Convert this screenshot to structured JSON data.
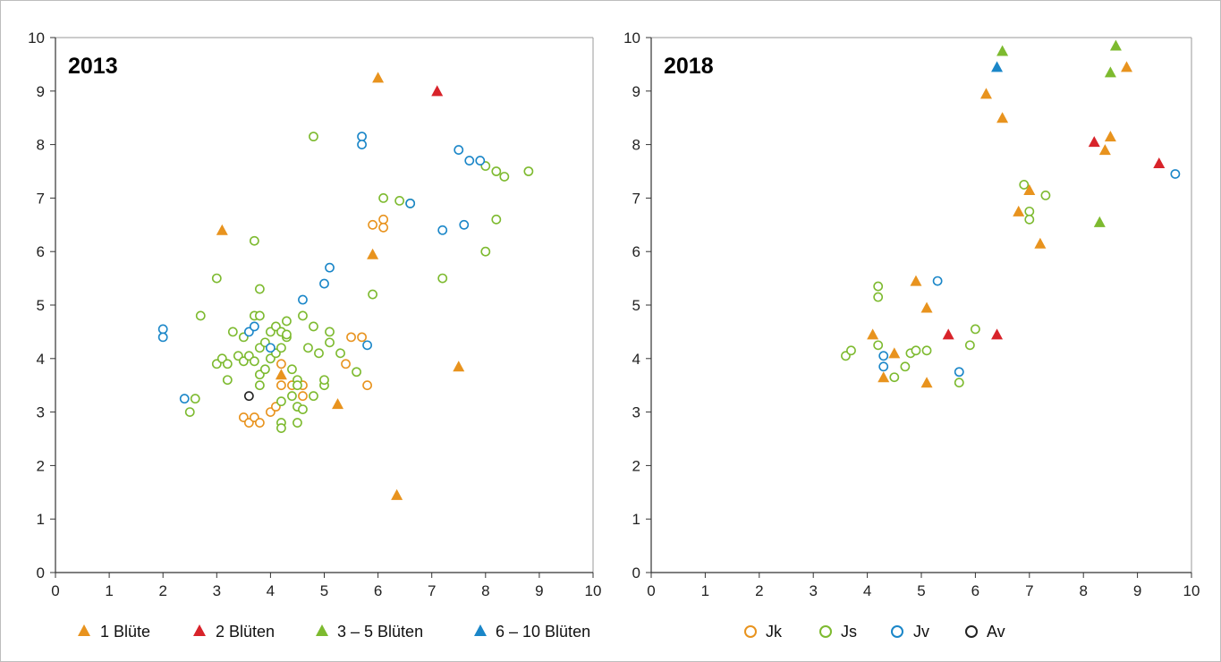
{
  "legends": {
    "flowers": [
      {
        "label": "1 Blüte",
        "color": "#E8931E"
      },
      {
        "label": "2 Blüten",
        "color": "#D8232A"
      },
      {
        "label": "3 – 5 Blüten",
        "color": "#7DBA2F"
      },
      {
        "label": "6 – 10 Blüten",
        "color": "#1A86C8"
      }
    ],
    "groups": [
      {
        "label": "Jk",
        "color": "#E8931E"
      },
      {
        "label": "Js",
        "color": "#7DBA2F"
      },
      {
        "label": "Jv",
        "color": "#1A86C8"
      },
      {
        "label": "Av",
        "color": "#222222"
      }
    ]
  },
  "chart_data": [
    {
      "type": "scatter",
      "title": "2013",
      "xlim": [
        0,
        10
      ],
      "ylim": [
        0,
        10
      ],
      "xticks": [
        "0",
        "1",
        "2",
        "3",
        "4",
        "5",
        "6",
        "7",
        "8",
        "9",
        "10"
      ],
      "yticks": [
        "0",
        "1",
        "2",
        "3",
        "4",
        "5",
        "6",
        "7",
        "8",
        "9",
        "10"
      ],
      "grid": false,
      "series": [
        {
          "name": "Jk",
          "marker": "circle-open",
          "color": "#E8931E",
          "points": [
            [
              3.5,
              2.9
            ],
            [
              3.6,
              2.8
            ],
            [
              3.7,
              2.9
            ],
            [
              3.8,
              2.8
            ],
            [
              4.0,
              3.0
            ],
            [
              4.1,
              3.1
            ],
            [
              4.2,
              3.5
            ],
            [
              4.2,
              3.9
            ],
            [
              4.4,
              3.5
            ],
            [
              4.6,
              3.3
            ],
            [
              4.6,
              3.5
            ],
            [
              5.4,
              3.9
            ],
            [
              5.5,
              4.4
            ],
            [
              5.7,
              4.4
            ],
            [
              5.8,
              3.5
            ],
            [
              5.9,
              6.5
            ],
            [
              6.1,
              6.6
            ],
            [
              6.1,
              6.45
            ]
          ]
        },
        {
          "name": "Js",
          "marker": "circle-open",
          "color": "#7DBA2F",
          "points": [
            [
              2.5,
              3.0
            ],
            [
              2.6,
              3.25
            ],
            [
              2.7,
              4.8
            ],
            [
              3.0,
              3.9
            ],
            [
              3.0,
              5.5
            ],
            [
              3.1,
              4.0
            ],
            [
              3.2,
              3.9
            ],
            [
              3.2,
              3.6
            ],
            [
              3.3,
              4.5
            ],
            [
              3.4,
              4.05
            ],
            [
              3.5,
              3.95
            ],
            [
              3.5,
              4.4
            ],
            [
              3.6,
              4.05
            ],
            [
              3.7,
              4.8
            ],
            [
              3.7,
              6.2
            ],
            [
              3.7,
              3.95
            ],
            [
              3.8,
              4.8
            ],
            [
              3.8,
              5.3
            ],
            [
              3.8,
              4.2
            ],
            [
              3.8,
              3.7
            ],
            [
              3.8,
              3.5
            ],
            [
              3.9,
              4.3
            ],
            [
              3.9,
              3.8
            ],
            [
              4.0,
              4.5
            ],
            [
              4.0,
              4.0
            ],
            [
              4.1,
              4.1
            ],
            [
              4.1,
              4.6
            ],
            [
              4.2,
              4.5
            ],
            [
              4.2,
              4.2
            ],
            [
              4.2,
              3.2
            ],
            [
              4.2,
              2.8
            ],
            [
              4.2,
              2.7
            ],
            [
              4.3,
              4.4
            ],
            [
              4.3,
              4.7
            ],
            [
              4.3,
              4.45
            ],
            [
              4.4,
              3.3
            ],
            [
              4.4,
              3.8
            ],
            [
              4.5,
              3.6
            ],
            [
              4.5,
              3.5
            ],
            [
              4.5,
              3.1
            ],
            [
              4.5,
              2.8
            ],
            [
              4.6,
              3.05
            ],
            [
              4.6,
              4.8
            ],
            [
              4.7,
              4.2
            ],
            [
              4.8,
              8.15
            ],
            [
              4.8,
              3.3
            ],
            [
              4.8,
              4.6
            ],
            [
              4.9,
              4.1
            ],
            [
              5.0,
              3.5
            ],
            [
              5.0,
              3.6
            ],
            [
              5.1,
              4.3
            ],
            [
              5.1,
              4.5
            ],
            [
              5.3,
              4.1
            ],
            [
              5.6,
              3.75
            ],
            [
              5.9,
              5.2
            ],
            [
              6.1,
              7.0
            ],
            [
              6.4,
              6.95
            ],
            [
              6.6,
              6.9
            ],
            [
              7.2,
              5.5
            ],
            [
              8.0,
              7.6
            ],
            [
              8.0,
              6.0
            ],
            [
              8.2,
              7.5
            ],
            [
              8.2,
              6.6
            ],
            [
              8.35,
              7.4
            ],
            [
              8.8,
              7.5
            ]
          ]
        },
        {
          "name": "Jv",
          "marker": "circle-open",
          "color": "#1A86C8",
          "points": [
            [
              2.0,
              4.55
            ],
            [
              2.0,
              4.4
            ],
            [
              2.4,
              3.25
            ],
            [
              3.6,
              4.5
            ],
            [
              3.7,
              4.6
            ],
            [
              4.0,
              4.2
            ],
            [
              4.6,
              5.1
            ],
            [
              5.0,
              5.4
            ],
            [
              5.1,
              5.7
            ],
            [
              5.7,
              8.15
            ],
            [
              5.7,
              8.0
            ],
            [
              5.8,
              4.25
            ],
            [
              6.6,
              6.9
            ],
            [
              7.2,
              6.4
            ],
            [
              7.5,
              7.9
            ],
            [
              7.6,
              6.5
            ],
            [
              7.7,
              7.7
            ],
            [
              7.9,
              7.7
            ]
          ]
        },
        {
          "name": "Av",
          "marker": "circle-open",
          "color": "#222222",
          "points": [
            [
              3.6,
              3.3
            ]
          ]
        },
        {
          "name": "1 Blüte",
          "marker": "triangle",
          "color": "#E8931E",
          "points": [
            [
              3.1,
              6.4
            ],
            [
              4.2,
              3.7
            ],
            [
              5.25,
              3.15
            ],
            [
              5.9,
              5.95
            ],
            [
              6.0,
              9.25
            ],
            [
              6.35,
              1.45
            ],
            [
              7.5,
              3.85
            ]
          ]
        },
        {
          "name": "2 Blüten",
          "marker": "triangle",
          "color": "#D8232A",
          "points": [
            [
              7.1,
              9.0
            ]
          ]
        }
      ]
    },
    {
      "type": "scatter",
      "title": "2018",
      "xlim": [
        0,
        10
      ],
      "ylim": [
        0,
        10
      ],
      "xticks": [
        "0",
        "1",
        "2",
        "3",
        "4",
        "5",
        "6",
        "7",
        "8",
        "9",
        "10"
      ],
      "yticks": [
        "0",
        "1",
        "2",
        "3",
        "4",
        "5",
        "6",
        "7",
        "8",
        "9",
        "10"
      ],
      "grid": false,
      "series": [
        {
          "name": "Js",
          "marker": "circle-open",
          "color": "#7DBA2F",
          "points": [
            [
              3.6,
              4.05
            ],
            [
              3.7,
              4.15
            ],
            [
              4.2,
              5.35
            ],
            [
              4.2,
              5.15
            ],
            [
              4.2,
              4.25
            ],
            [
              4.5,
              3.65
            ],
            [
              4.7,
              3.85
            ],
            [
              4.8,
              4.1
            ],
            [
              4.9,
              4.15
            ],
            [
              5.1,
              4.15
            ],
            [
              5.7,
              3.55
            ],
            [
              5.9,
              4.25
            ],
            [
              6.0,
              4.55
            ],
            [
              6.9,
              7.25
            ],
            [
              7.0,
              6.75
            ],
            [
              7.0,
              6.6
            ],
            [
              7.3,
              7.05
            ]
          ]
        },
        {
          "name": "Jv",
          "marker": "circle-open",
          "color": "#1A86C8",
          "points": [
            [
              4.3,
              4.05
            ],
            [
              4.3,
              3.85
            ],
            [
              5.3,
              5.45
            ],
            [
              5.7,
              3.75
            ],
            [
              9.7,
              7.45
            ]
          ]
        },
        {
          "name": "1 Blüte",
          "marker": "triangle",
          "color": "#E8931E",
          "points": [
            [
              4.1,
              4.45
            ],
            [
              4.3,
              3.65
            ],
            [
              4.5,
              4.1
            ],
            [
              4.9,
              5.45
            ],
            [
              5.1,
              4.95
            ],
            [
              5.1,
              3.55
            ],
            [
              6.2,
              8.95
            ],
            [
              6.5,
              8.5
            ],
            [
              6.8,
              6.75
            ],
            [
              7.0,
              7.15
            ],
            [
              7.2,
              6.15
            ],
            [
              8.4,
              7.9
            ],
            [
              8.5,
              8.15
            ],
            [
              8.8,
              9.45
            ]
          ]
        },
        {
          "name": "2 Blüten",
          "marker": "triangle",
          "color": "#D8232A",
          "points": [
            [
              5.5,
              4.45
            ],
            [
              6.4,
              4.45
            ],
            [
              8.2,
              8.05
            ],
            [
              9.4,
              7.65
            ]
          ]
        },
        {
          "name": "3 – 5 Blüten",
          "marker": "triangle",
          "color": "#7DBA2F",
          "points": [
            [
              6.5,
              9.75
            ],
            [
              8.3,
              6.55
            ],
            [
              8.5,
              9.35
            ],
            [
              8.6,
              9.85
            ]
          ]
        },
        {
          "name": "6 – 10 Blüten",
          "marker": "triangle",
          "color": "#1A86C8",
          "points": [
            [
              6.4,
              9.45
            ]
          ]
        }
      ]
    }
  ]
}
